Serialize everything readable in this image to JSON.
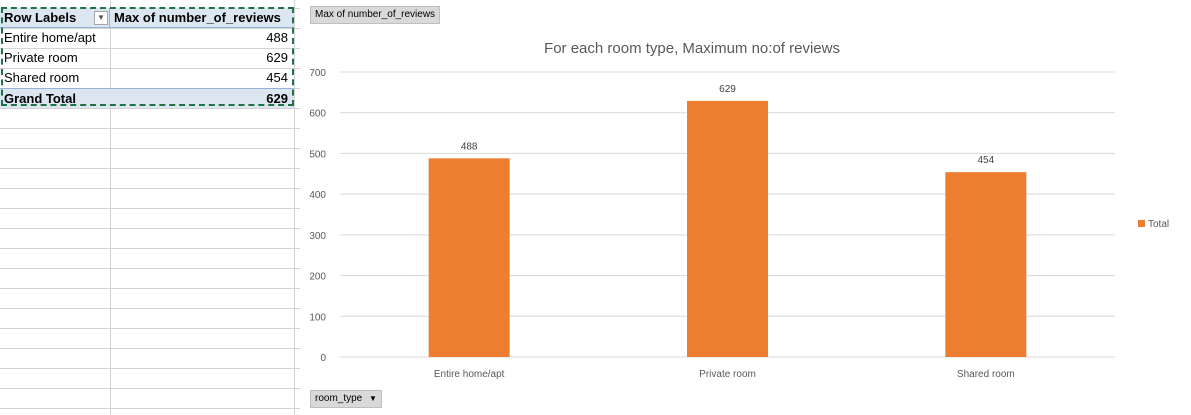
{
  "pivot": {
    "header": {
      "row_labels": "Row Labels",
      "value_col": "Max of number_of_reviews"
    },
    "rows": [
      {
        "label": "Entire home/apt",
        "value": "488"
      },
      {
        "label": "Private room",
        "value": "629"
      },
      {
        "label": "Shared room",
        "value": "454"
      }
    ],
    "total": {
      "label": "Grand Total",
      "value": "629"
    }
  },
  "chart_buttons": {
    "value_field": "Max of number_of_reviews",
    "axis_field": "room_type"
  },
  "colors": {
    "bar": "#ed7d31",
    "grid": "#d9d9d9",
    "pivot_header": "#dce6f1",
    "selection": "#217346"
  },
  "chart_data": {
    "type": "bar",
    "title": "For each room type, Maximum no:of reviews",
    "categories": [
      "Entire home/apt",
      "Private room",
      "Shared room"
    ],
    "series": [
      {
        "name": "Total",
        "values": [
          488,
          629,
          454
        ]
      }
    ],
    "ylim": [
      0,
      700
    ],
    "yticks": [
      0,
      100,
      200,
      300,
      400,
      500,
      600,
      700
    ],
    "grid": true,
    "legend": "right"
  }
}
